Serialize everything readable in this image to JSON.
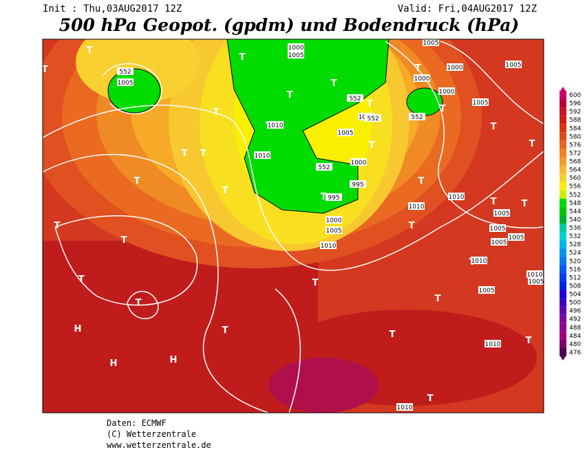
{
  "header": {
    "init": "Init : Thu,03AUG2017 12Z",
    "valid": "Valid: Fri,04AUG2017 12Z",
    "title": "500 hPa Geopot. (gpdm) und Bodendruck (hPa)"
  },
  "colorbar": {
    "ticks": [
      600,
      596,
      592,
      588,
      584,
      580,
      576,
      572,
      568,
      564,
      560,
      556,
      552,
      548,
      544,
      540,
      536,
      532,
      528,
      524,
      520,
      516,
      512,
      508,
      504,
      500,
      496,
      492,
      488,
      484,
      480,
      476
    ],
    "colors": [
      "#c8006e",
      "#b4003c",
      "#c81428",
      "#d01e14",
      "#dc3214",
      "#e04a1c",
      "#e86420",
      "#ee8022",
      "#f49c26",
      "#f8b82c",
      "#f8d030",
      "#f8ec10",
      "#c8f000",
      "#00dc00",
      "#00c800",
      "#00b428",
      "#00c8a0",
      "#00d2d2",
      "#00b4e6",
      "#0096f0",
      "#0078f0",
      "#005af0",
      "#003cf0",
      "#0020e6",
      "#2000d0",
      "#4000c0",
      "#6000b0",
      "#8000a0",
      "#900090",
      "#a00080",
      "#800070",
      "#500050"
    ]
  },
  "map": {
    "labels": [
      "T",
      "T",
      "T",
      "T",
      "T",
      "T",
      "T",
      "T",
      "T",
      "T",
      "T",
      "T",
      "T",
      "T",
      "T",
      "T",
      "T",
      "T",
      "T",
      "T",
      "T",
      "T",
      "T",
      "T",
      "T",
      "H",
      "H",
      "H",
      "T",
      "T",
      "T",
      "T",
      "T",
      "T",
      "T",
      "T"
    ],
    "isobar_labels": [
      "1000",
      "1005",
      "552",
      "1005",
      "1000",
      "1005",
      "1005",
      "1000",
      "1000",
      "1005",
      "552",
      "552",
      "1010",
      "1005",
      "1010",
      "552",
      "1010",
      "1000",
      "552",
      "995",
      "995",
      "1000",
      "1005",
      "1010",
      "1010",
      "1010",
      "1005",
      "1005",
      "1005",
      "1005",
      "1010",
      "1005",
      "1010",
      "1005",
      "1010",
      "1010"
    ]
  },
  "footer": {
    "source": "Daten: ECMWF",
    "copyright": "(C) Wetterzentrale",
    "url": "www.wetterzentrale.de"
  }
}
